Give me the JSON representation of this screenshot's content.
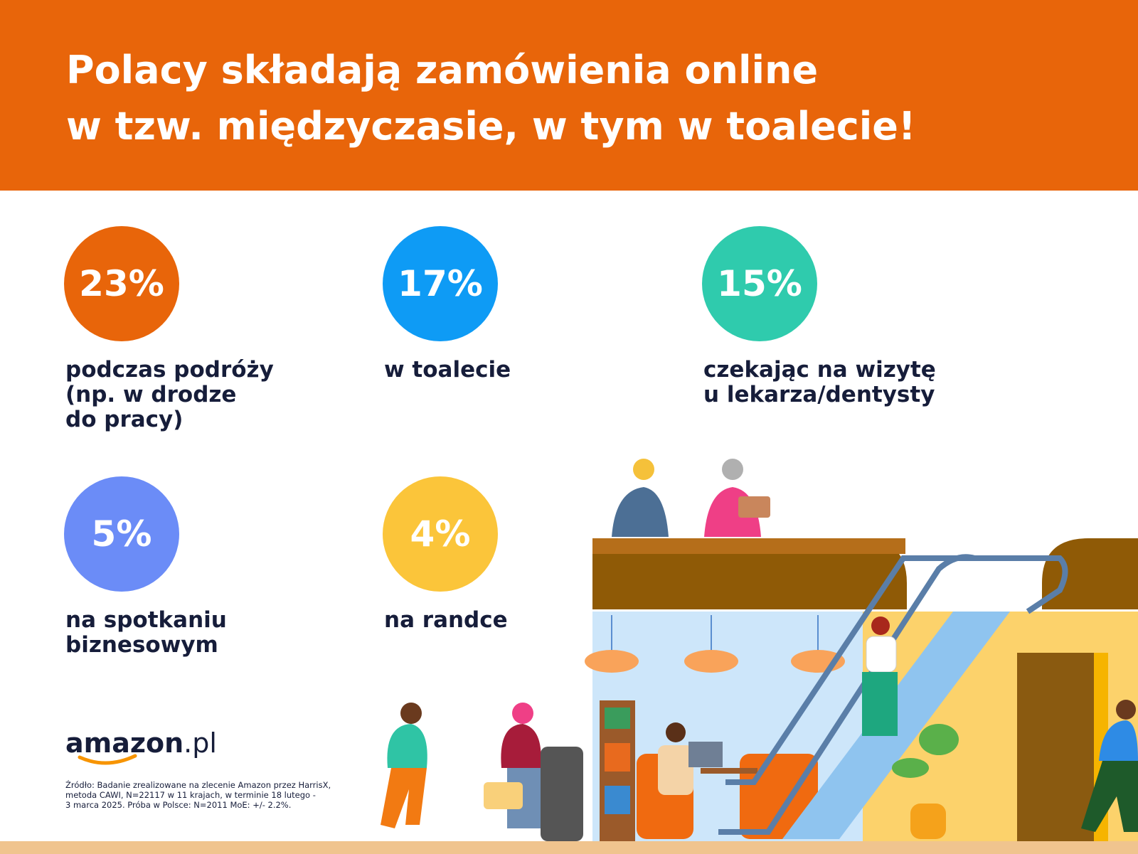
{
  "header": {
    "title": [
      "Polacy składają zamówienia online",
      "w tzw. międzyczasie, w tym w toalecie!"
    ]
  },
  "stats": [
    {
      "value": "23%",
      "label": [
        "podczas podróży",
        "(np. w drodze",
        "do pracy)"
      ]
    },
    {
      "value": "17%",
      "label": [
        "w  toalecie"
      ]
    },
    {
      "value": "15%",
      "label": [
        "czekając na wizytę",
        "u lekarza/dentysty"
      ]
    },
    {
      "value": "5%",
      "label": [
        "na spotkaniu",
        "biznesowym"
      ]
    },
    {
      "value": "4%",
      "label": [
        "na randce"
      ]
    }
  ],
  "logo": {
    "name": "amazon",
    "suffix": ".pl"
  },
  "source": [
    "Źródło: Badanie zrealizowane na zlecenie Amazon przez HarrisX,",
    "metoda CAWI, N=22117 w 11 krajach, w terminie 18 lutego -",
    "3 marca 2025. Próba w Polsce: N=2011 MoE: +/- 2.2%."
  ]
}
